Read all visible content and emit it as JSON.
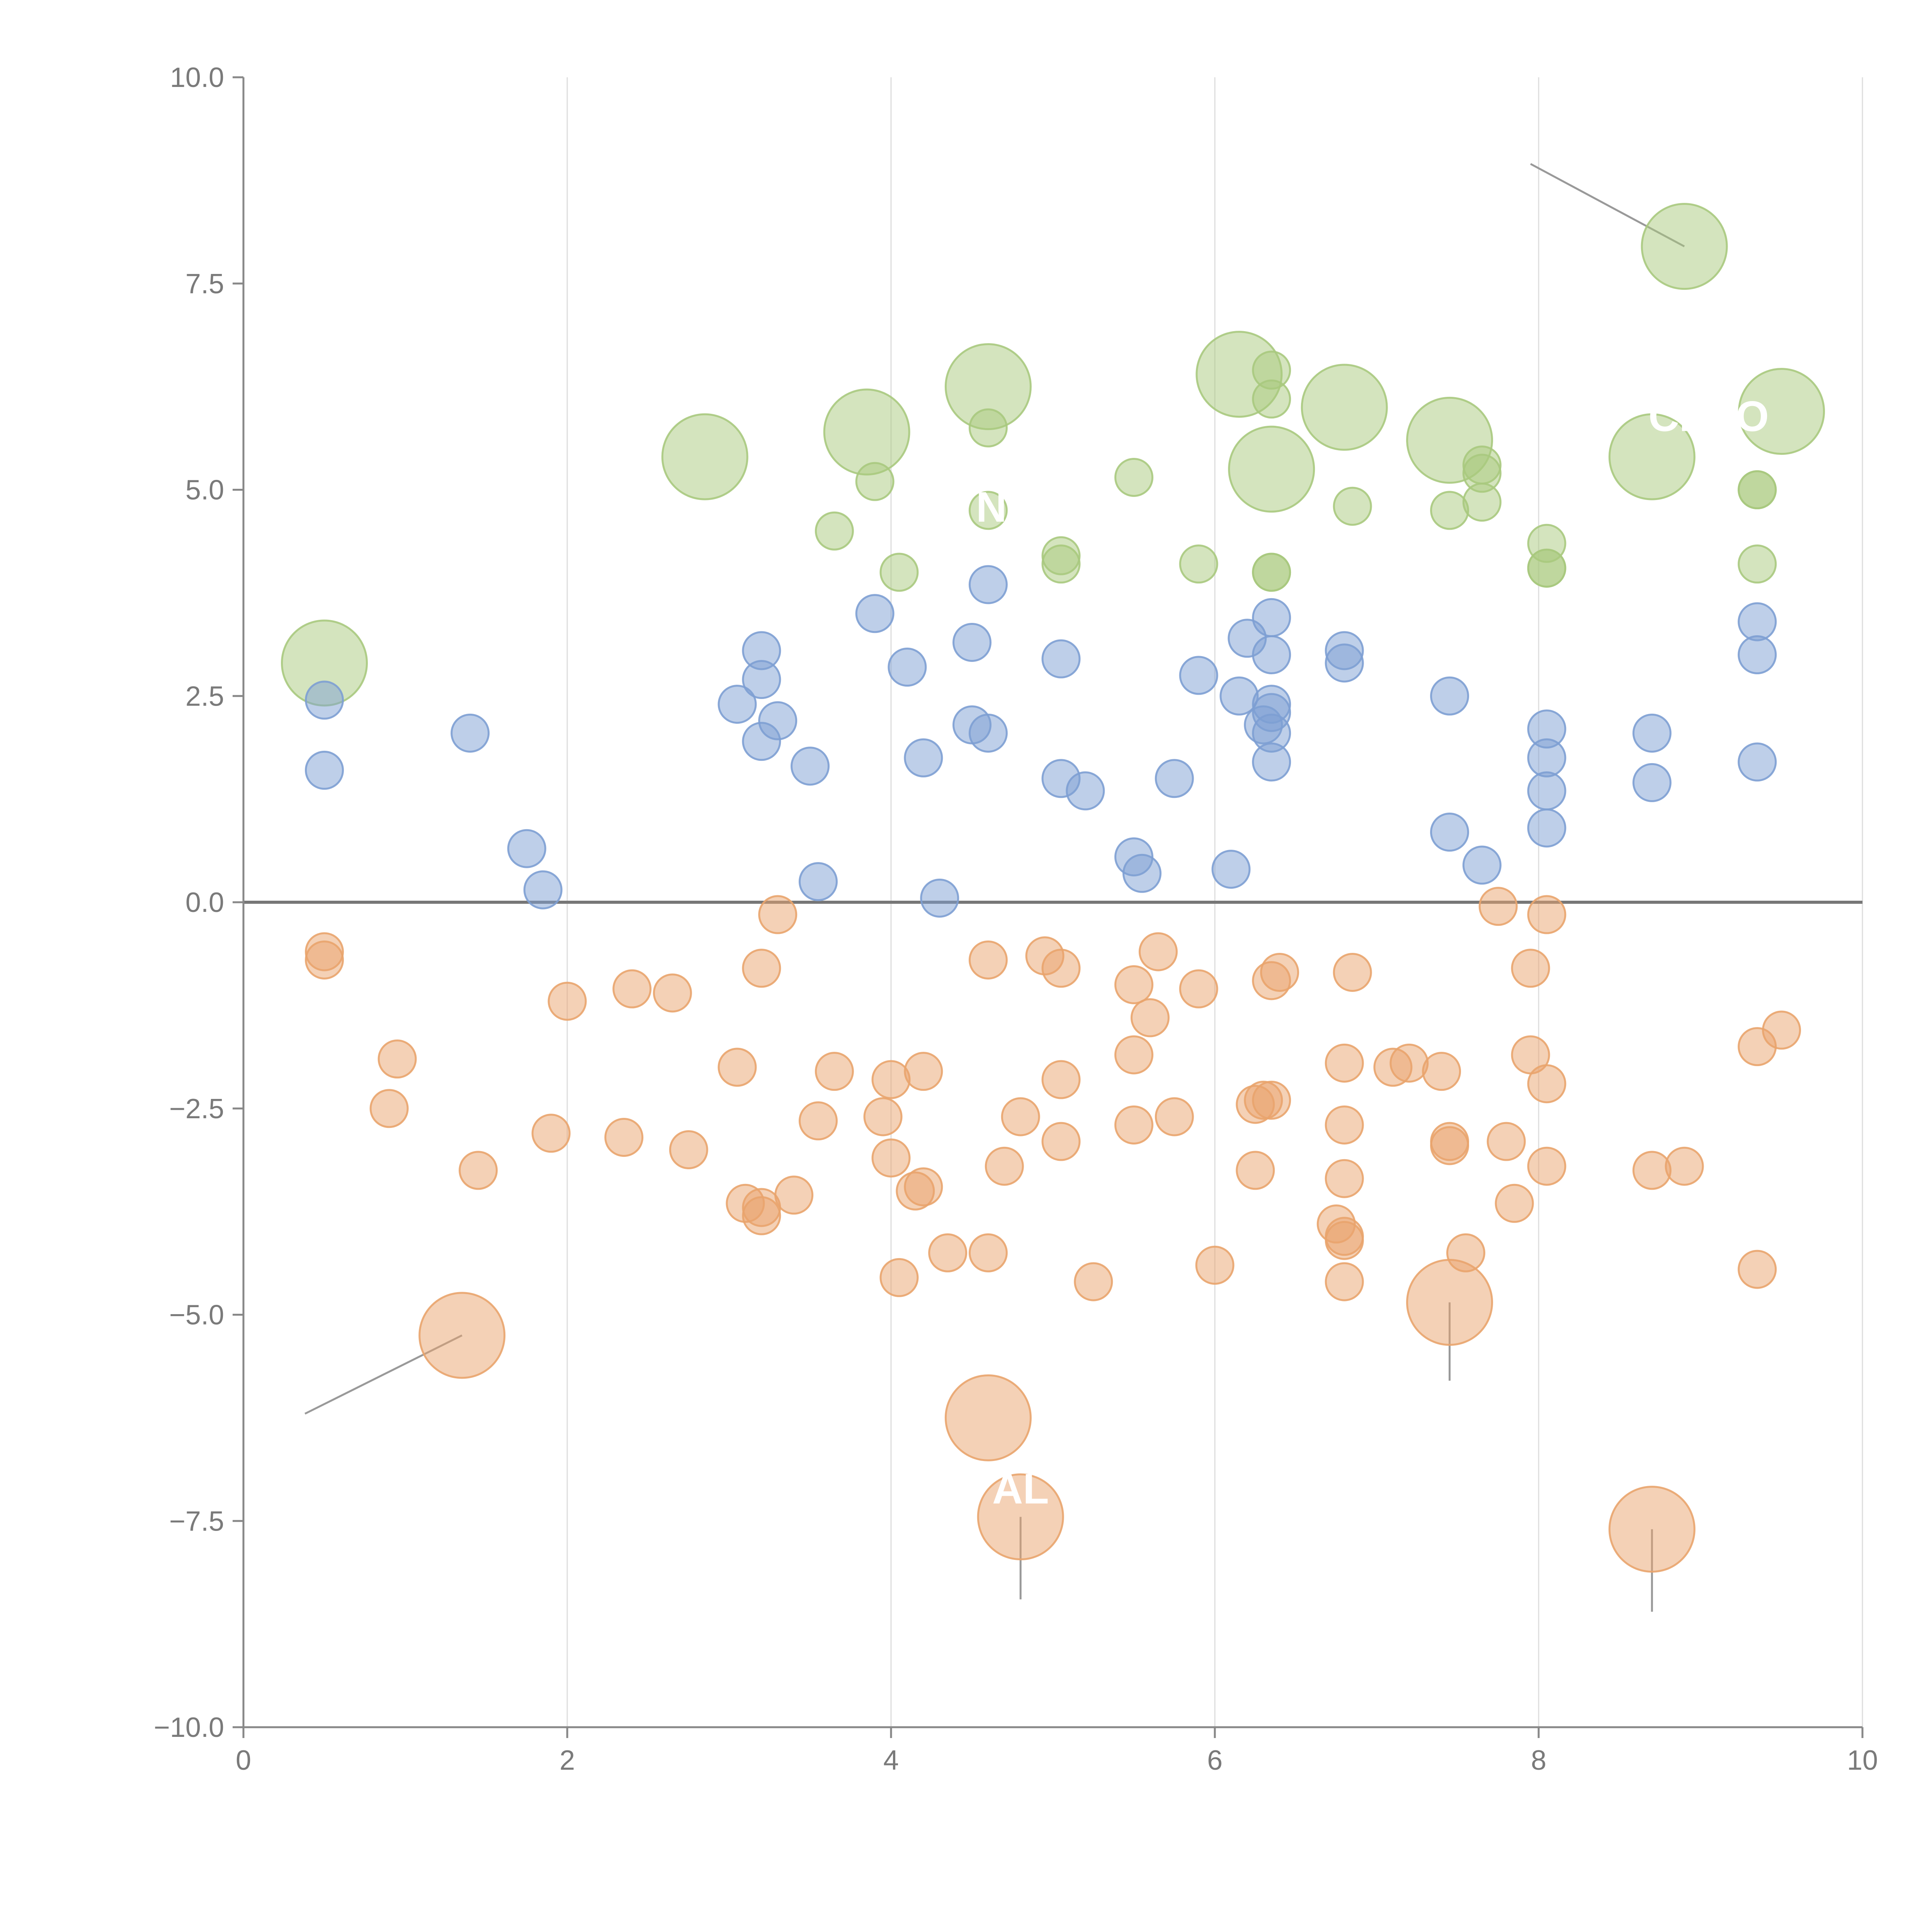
{
  "chart_data": {
    "type": "scatter",
    "title": "",
    "xlabel": "",
    "ylabel": "",
    "xlim": [
      0,
      10
    ],
    "ylim": [
      -10,
      10
    ],
    "x_ticks": [
      0,
      2,
      4,
      6,
      8,
      10
    ],
    "x_tick_labels": [
      "0",
      "2",
      "4",
      "6",
      "8",
      "10"
    ],
    "y_ticks": [
      -10,
      -7.5,
      -5,
      -2.5,
      0,
      2.5,
      5,
      7.5,
      10
    ],
    "y_tick_labels": [
      "−10.0",
      "−7.5",
      "−5.0",
      "−2.5",
      "0.0",
      "2.5",
      "5.0",
      "7.5",
      "10.0"
    ],
    "grid": "vertical",
    "zero_line": true,
    "colors": {
      "green": "#a9c97e",
      "blue": "#7d9fd3",
      "orange": "#e9a46d",
      "axis": "#888888",
      "grid": "#dddddd",
      "zero_line": "#777777",
      "leader": "#999999"
    },
    "series": [
      {
        "name": "green",
        "color": "#a9c97e",
        "points": [
          [
            0.5,
            2.9,
            1
          ],
          [
            8.9,
            7.95,
            1
          ],
          [
            2.85,
            5.4,
            1
          ],
          [
            3.85,
            5.7,
            1
          ],
          [
            4.6,
            6.25,
            1
          ],
          [
            6.15,
            6.4,
            1
          ],
          [
            6.35,
            5.25,
            1
          ],
          [
            6.8,
            6.0,
            1
          ],
          [
            7.45,
            5.6,
            1
          ],
          [
            8.7,
            5.4,
            1
          ],
          [
            9.5,
            5.95,
            1
          ],
          [
            3.9,
            5.1,
            0
          ],
          [
            3.65,
            4.5,
            0
          ],
          [
            4.05,
            4.0,
            0
          ],
          [
            4.6,
            5.75,
            0
          ],
          [
            4.6,
            4.75,
            0
          ],
          [
            5.05,
            4.1,
            0
          ],
          [
            5.05,
            4.2,
            0
          ],
          [
            5.5,
            5.15,
            0
          ],
          [
            5.9,
            4.1,
            0
          ],
          [
            6.35,
            4.0,
            0
          ],
          [
            6.35,
            4.0,
            0
          ],
          [
            6.35,
            6.45,
            0
          ],
          [
            6.35,
            6.1,
            0
          ],
          [
            6.85,
            4.8,
            0
          ],
          [
            7.45,
            4.75,
            0
          ],
          [
            7.65,
            5.3,
            0
          ],
          [
            7.65,
            5.2,
            0
          ],
          [
            7.65,
            4.85,
            0
          ],
          [
            8.05,
            4.35,
            0
          ],
          [
            8.05,
            4.05,
            0
          ],
          [
            8.05,
            4.05,
            0
          ],
          [
            9.35,
            5.0,
            0
          ],
          [
            9.35,
            5.0,
            0
          ],
          [
            9.35,
            4.1,
            0
          ]
        ]
      },
      {
        "name": "blue",
        "color": "#7d9fd3",
        "points": [
          [
            0.5,
            2.45,
            0
          ],
          [
            0.5,
            1.6,
            0
          ],
          [
            1.4,
            2.05,
            0
          ],
          [
            1.75,
            0.65,
            0
          ],
          [
            1.85,
            0.15,
            0
          ],
          [
            3.05,
            2.4,
            0
          ],
          [
            3.2,
            3.05,
            0
          ],
          [
            3.2,
            2.7,
            0
          ],
          [
            3.2,
            1.95,
            0
          ],
          [
            3.3,
            2.2,
            0
          ],
          [
            3.5,
            1.65,
            0
          ],
          [
            3.55,
            0.25,
            0
          ],
          [
            3.9,
            3.5,
            0
          ],
          [
            4.1,
            2.85,
            0
          ],
          [
            4.2,
            1.75,
            0
          ],
          [
            4.3,
            0.05,
            0
          ],
          [
            4.5,
            3.15,
            0
          ],
          [
            4.5,
            2.15,
            0
          ],
          [
            4.6,
            3.85,
            0
          ],
          [
            4.6,
            2.05,
            0
          ],
          [
            5.05,
            2.95,
            0
          ],
          [
            5.05,
            1.5,
            0
          ],
          [
            5.2,
            1.35,
            0
          ],
          [
            5.5,
            0.55,
            0
          ],
          [
            5.55,
            0.35,
            0
          ],
          [
            5.75,
            1.5,
            0
          ],
          [
            5.9,
            2.75,
            0
          ],
          [
            6.1,
            0.4,
            0
          ],
          [
            6.15,
            2.5,
            0
          ],
          [
            6.2,
            3.2,
            0
          ],
          [
            6.3,
            2.15,
            0
          ],
          [
            6.35,
            3.45,
            0
          ],
          [
            6.35,
            3.0,
            0
          ],
          [
            6.35,
            2.4,
            0
          ],
          [
            6.35,
            2.3,
            0
          ],
          [
            6.35,
            2.05,
            0
          ],
          [
            6.35,
            1.7,
            0
          ],
          [
            6.8,
            3.05,
            0
          ],
          [
            6.8,
            2.9,
            0
          ],
          [
            7.45,
            2.5,
            0
          ],
          [
            7.45,
            0.85,
            0
          ],
          [
            7.65,
            0.45,
            0
          ],
          [
            8.05,
            2.1,
            0
          ],
          [
            8.05,
            1.75,
            0
          ],
          [
            8.05,
            1.35,
            0
          ],
          [
            8.05,
            0.9,
            0
          ],
          [
            8.7,
            2.05,
            0
          ],
          [
            8.7,
            1.45,
            0
          ],
          [
            9.35,
            3.4,
            0
          ],
          [
            9.35,
            3.0,
            0
          ],
          [
            9.35,
            1.7,
            0
          ]
        ]
      },
      {
        "name": "orange",
        "color": "#e9a46d",
        "points": [
          [
            1.35,
            -5.25,
            1
          ],
          [
            4.6,
            -6.25,
            1
          ],
          [
            4.8,
            -7.45,
            1
          ],
          [
            7.45,
            -4.85,
            1
          ],
          [
            8.7,
            -7.6,
            1
          ],
          [
            0.5,
            -0.6,
            0
          ],
          [
            0.5,
            -0.7,
            0
          ],
          [
            0.95,
            -1.9,
            0
          ],
          [
            0.9,
            -2.5,
            0
          ],
          [
            1.45,
            -3.25,
            0
          ],
          [
            2.0,
            -1.2,
            0
          ],
          [
            1.9,
            -2.8,
            0
          ],
          [
            2.4,
            -1.05,
            0
          ],
          [
            2.65,
            -1.1,
            0
          ],
          [
            2.35,
            -2.85,
            0
          ],
          [
            2.75,
            -3.0,
            0
          ],
          [
            3.05,
            -2.0,
            0
          ],
          [
            3.1,
            -3.65,
            0
          ],
          [
            3.2,
            -3.7,
            0
          ],
          [
            3.2,
            -3.8,
            0
          ],
          [
            3.2,
            -0.8,
            0
          ],
          [
            3.3,
            -0.15,
            0
          ],
          [
            3.4,
            -3.55,
            0
          ],
          [
            3.55,
            -2.65,
            0
          ],
          [
            3.65,
            -2.05,
            0
          ],
          [
            3.95,
            -2.6,
            0
          ],
          [
            4.0,
            -3.1,
            0
          ],
          [
            4.0,
            -2.15,
            0
          ],
          [
            4.05,
            -4.55,
            0
          ],
          [
            4.15,
            -3.5,
            0
          ],
          [
            4.2,
            -3.45,
            0
          ],
          [
            4.2,
            -2.05,
            0
          ],
          [
            4.35,
            -4.25,
            0
          ],
          [
            4.6,
            -4.25,
            0
          ],
          [
            4.6,
            -0.7,
            0
          ],
          [
            4.7,
            -3.2,
            0
          ],
          [
            4.8,
            -2.6,
            0
          ],
          [
            4.95,
            -0.65,
            0
          ],
          [
            5.05,
            -0.8,
            0
          ],
          [
            5.05,
            -2.15,
            0
          ],
          [
            5.05,
            -2.9,
            0
          ],
          [
            5.25,
            -4.6,
            0
          ],
          [
            5.5,
            -1.0,
            0
          ],
          [
            5.5,
            -1.85,
            0
          ],
          [
            5.5,
            -2.7,
            0
          ],
          [
            5.6,
            -1.4,
            0
          ],
          [
            5.65,
            -0.6,
            0
          ],
          [
            5.75,
            -2.6,
            0
          ],
          [
            5.9,
            -1.05,
            0
          ],
          [
            6.0,
            -4.4,
            0
          ],
          [
            6.25,
            -2.45,
            0
          ],
          [
            6.25,
            -3.25,
            0
          ],
          [
            6.3,
            -2.4,
            0
          ],
          [
            6.35,
            -0.95,
            0
          ],
          [
            6.35,
            -2.4,
            0
          ],
          [
            6.4,
            -0.85,
            0
          ],
          [
            6.75,
            -3.9,
            0
          ],
          [
            6.8,
            -4.05,
            0
          ],
          [
            6.8,
            -4.1,
            0
          ],
          [
            6.8,
            -3.35,
            0
          ],
          [
            6.8,
            -2.7,
            0
          ],
          [
            6.8,
            -1.95,
            0
          ],
          [
            6.8,
            -4.6,
            0
          ],
          [
            6.85,
            -0.85,
            0
          ],
          [
            7.1,
            -2.0,
            0
          ],
          [
            7.2,
            -1.95,
            0
          ],
          [
            7.4,
            -2.05,
            0
          ],
          [
            7.45,
            -2.9,
            0
          ],
          [
            7.45,
            -2.95,
            0
          ],
          [
            7.55,
            -4.25,
            0
          ],
          [
            7.75,
            -0.05,
            0
          ],
          [
            7.8,
            -2.9,
            0
          ],
          [
            7.85,
            -3.65,
            0
          ],
          [
            7.95,
            -0.8,
            0
          ],
          [
            7.95,
            -1.85,
            0
          ],
          [
            8.05,
            -0.15,
            0
          ],
          [
            8.05,
            -2.2,
            0
          ],
          [
            8.05,
            -3.2,
            0
          ],
          [
            8.9,
            -3.2,
            0
          ],
          [
            8.7,
            -3.25,
            0
          ],
          [
            9.35,
            -1.75,
            0
          ],
          [
            9.5,
            -1.55,
            0
          ],
          [
            9.35,
            -4.45,
            0
          ]
        ]
      }
    ],
    "annotations": [
      {
        "text": " ",
        "point": [
          8.9,
          7.95
        ],
        "anchor": [
          7.95,
          8.95
        ]
      },
      {
        "text": "CLAO",
        "point": [
          8.7,
          5.4
        ],
        "anchor": [
          9.05,
          5.9
        ]
      },
      {
        "text": "N",
        "point": [
          4.6,
          4.75
        ],
        "anchor": [
          4.62,
          4.8
        ]
      },
      {
        "text": "AL",
        "point": [
          4.6,
          -6.25
        ],
        "anchor": [
          4.8,
          -7.1
        ]
      },
      {
        "text": " ",
        "point": [
          1.35,
          -5.25
        ],
        "anchor": [
          0.38,
          -6.2
        ]
      },
      {
        "text": " ",
        "point": [
          7.45,
          -4.85
        ],
        "anchor": [
          7.45,
          -5.8
        ]
      },
      {
        "text": " ",
        "point": [
          8.7,
          -7.6
        ],
        "anchor": [
          8.7,
          -8.6
        ]
      },
      {
        "text": " ",
        "point": [
          4.8,
          -7.45
        ],
        "anchor": [
          4.8,
          -8.45
        ]
      }
    ]
  }
}
